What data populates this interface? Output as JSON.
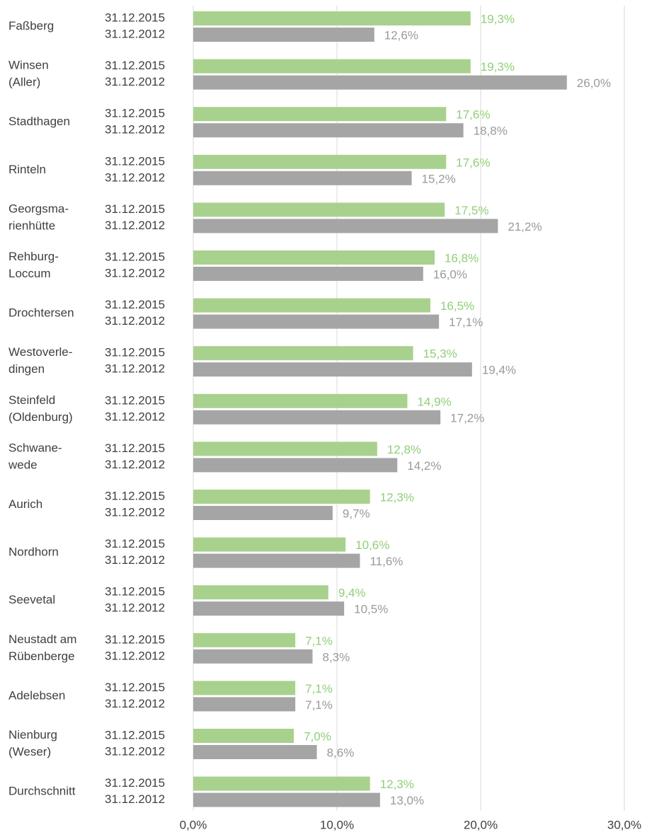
{
  "chart_data": {
    "type": "bar",
    "orientation": "horizontal",
    "categories": [
      [
        "Faßberg"
      ],
      [
        "Winsen",
        "(Aller)"
      ],
      [
        "Stadthagen"
      ],
      [
        "Rinteln"
      ],
      [
        "Georgsma-",
        "rienhütte"
      ],
      [
        "Rehburg-",
        "Loccum"
      ],
      [
        "Drochtersen"
      ],
      [
        "Westoverle-",
        "dingen"
      ],
      [
        "Steinfeld",
        "(Oldenburg)"
      ],
      [
        "Schwane-",
        "wede"
      ],
      [
        "Aurich"
      ],
      [
        "Nordhorn"
      ],
      [
        "Seevetal"
      ],
      [
        "Neustadt am",
        "Rübenberge"
      ],
      [
        "Adelebsen"
      ],
      [
        "Nienburg",
        "(Weser)"
      ],
      [
        "Durchschnitt"
      ]
    ],
    "series": [
      {
        "name": "31.12.2015",
        "color": "#a9d18e",
        "label_color": "#8fcf77",
        "values": [
          19.3,
          19.3,
          17.6,
          17.6,
          17.5,
          16.8,
          16.5,
          15.3,
          14.9,
          12.8,
          12.3,
          10.6,
          9.4,
          7.1,
          7.1,
          7.0,
          12.3
        ],
        "value_labels": [
          "19,3%",
          "19,3%",
          "17,6%",
          "17,6%",
          "17,5%",
          "16,8%",
          "16,5%",
          "15,3%",
          "14,9%",
          "12,8%",
          "12,3%",
          "10,6%",
          "9,4%",
          "7,1%",
          "7,1%",
          "7,0%",
          "12,3%"
        ]
      },
      {
        "name": "31.12.2012",
        "color": "#a5a5a5",
        "label_color": "#9a9a9a",
        "values": [
          12.6,
          26.0,
          18.8,
          15.2,
          21.2,
          16.0,
          17.1,
          19.4,
          17.2,
          14.2,
          9.7,
          11.6,
          10.5,
          8.3,
          7.1,
          8.6,
          13.0
        ],
        "value_labels": [
          "12,6%",
          "26,0%",
          "18,8%",
          "15,2%",
          "21,2%",
          "16,0%",
          "17,1%",
          "19,4%",
          "17,2%",
          "14,2%",
          "9,7%",
          "11,6%",
          "10,5%",
          "8,3%",
          "7,1%",
          "8,6%",
          "13,0%"
        ]
      }
    ],
    "xlim": [
      0,
      30
    ],
    "xticks": [
      {
        "value": 0,
        "label": "0,0%"
      },
      {
        "value": 10,
        "label": "10,0%"
      },
      {
        "value": 20,
        "label": "20,0%"
      },
      {
        "value": 30,
        "label": "30,0%"
      }
    ],
    "grid": true
  }
}
